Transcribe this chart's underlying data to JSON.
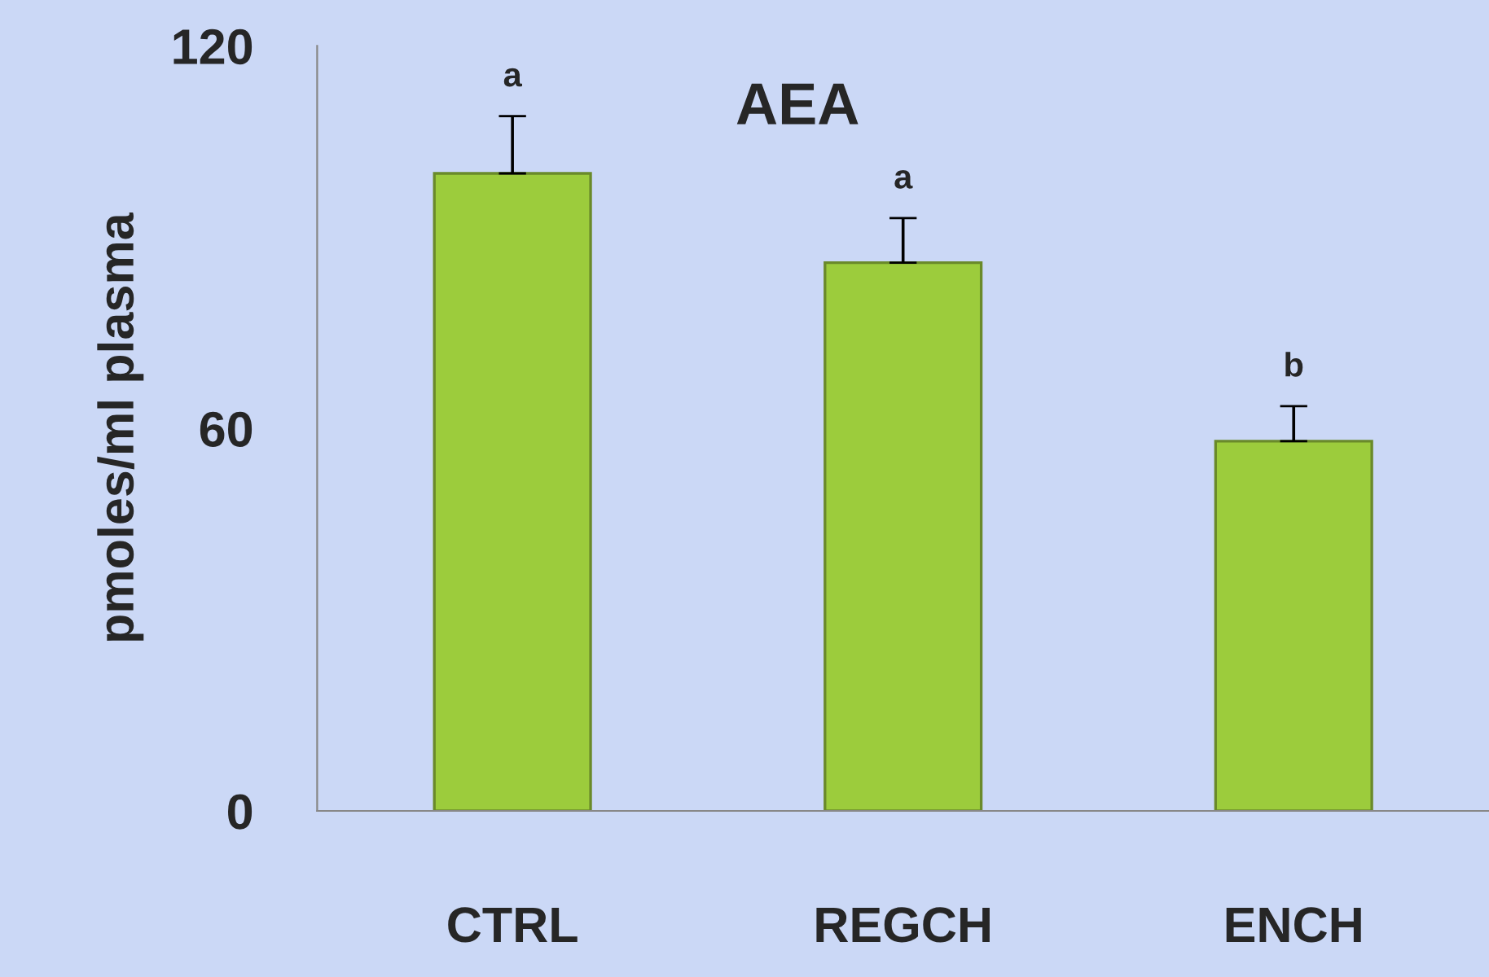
{
  "chart_data": {
    "type": "bar",
    "title": "AEA",
    "ylabel": "pmoles/ml plasma",
    "categories": [
      "CTRL",
      "REGCH",
      "ENCH"
    ],
    "values": [
      100,
      86,
      58
    ],
    "errors": [
      9,
      7,
      5.5
    ],
    "color": "#9ccc3c",
    "ylim": [
      0,
      120
    ],
    "yticks": [
      0,
      60,
      120
    ],
    "grid": false,
    "annotations": [
      {
        "text": "a",
        "x": "CTRL",
        "y": 109
      },
      {
        "text": "a",
        "x": "REGCH",
        "y": 93
      },
      {
        "text": "b",
        "x": "ENCH",
        "y": 63.5
      }
    ]
  }
}
